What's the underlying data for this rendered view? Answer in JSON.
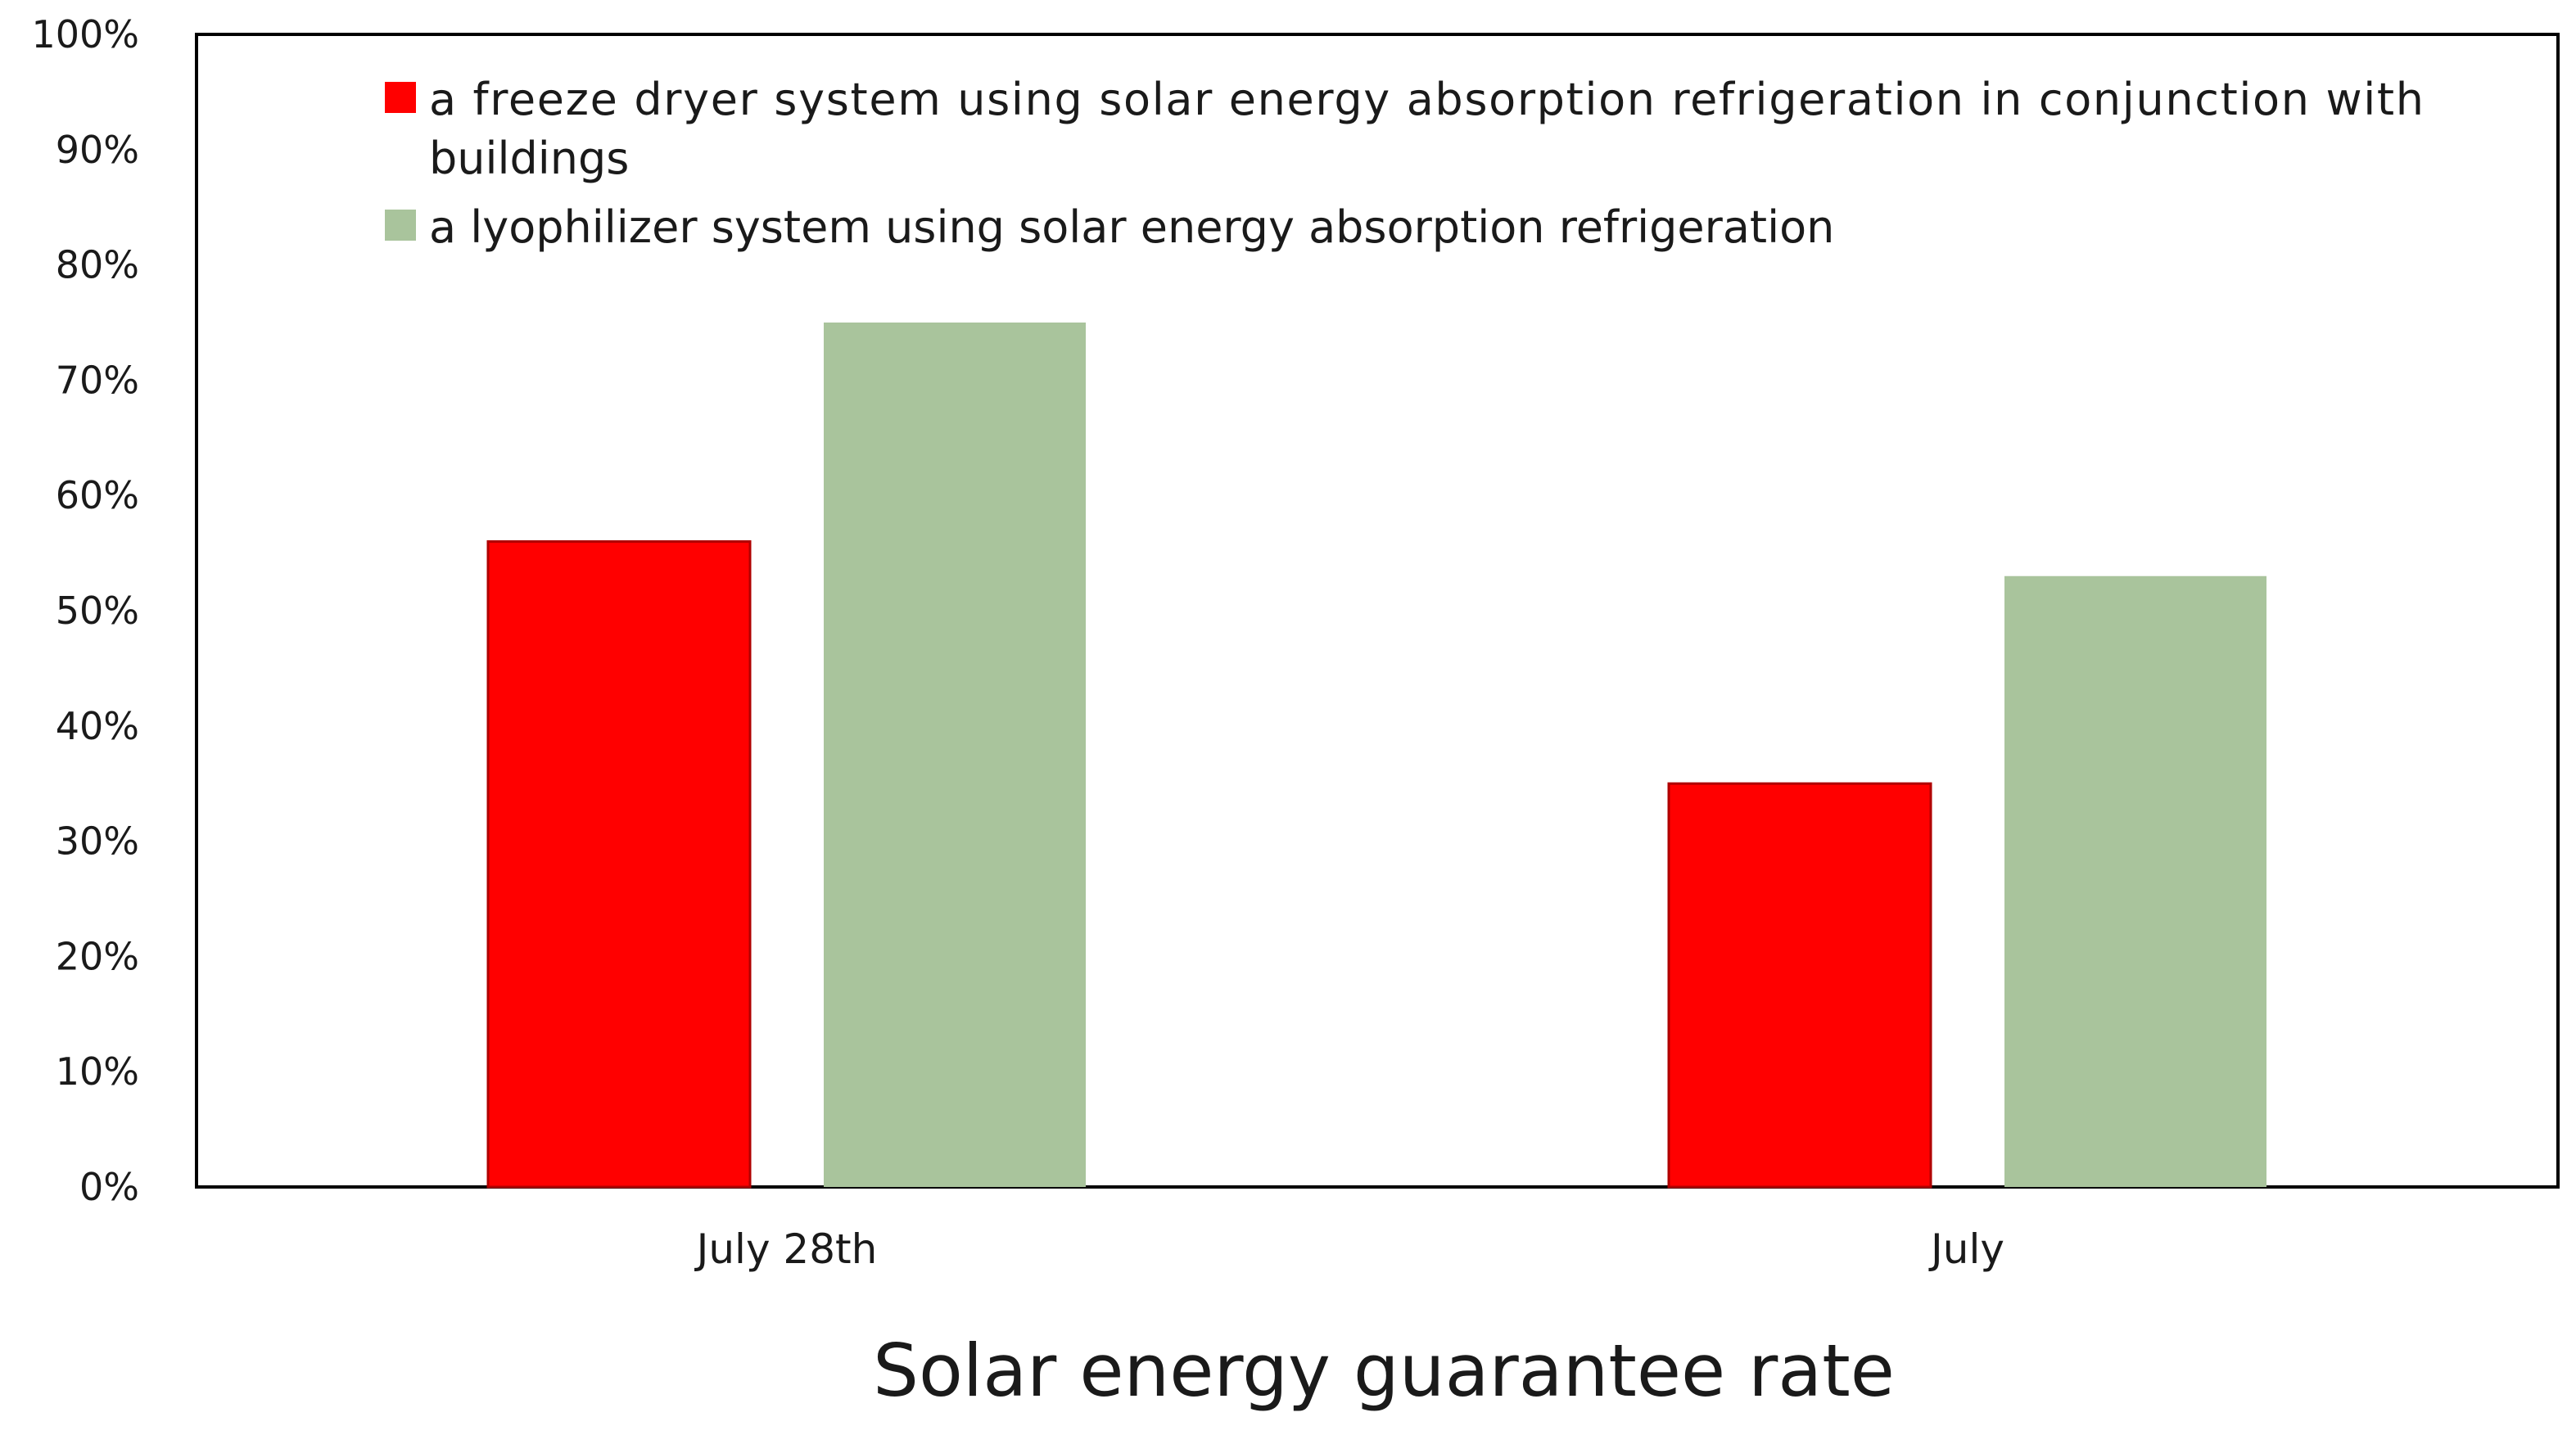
{
  "chart_data": {
    "type": "bar",
    "title": "Solar energy guarantee rate",
    "xlabel": "",
    "ylabel": "",
    "categories": [
      "July 28th",
      "July"
    ],
    "series": [
      {
        "name": "a freeze dryer system using solar energy absorption refrigeration in conjunction with buildings",
        "legend_lines": [
          "a freeze dryer system using solar energy absorption refrigeration in conjunction with",
          "buildings"
        ],
        "color": "#ff0000",
        "values": [
          56,
          35
        ]
      },
      {
        "name": "a lyophilizer system using solar energy absorption refrigeration",
        "legend_lines": [
          "a lyophilizer system using solar energy absorption refrigeration"
        ],
        "color": "#a9c49c",
        "values": [
          75,
          53
        ]
      }
    ],
    "ylim": [
      0,
      100
    ],
    "yticks": [
      "0%",
      "10%",
      "20%",
      "30%",
      "40%",
      "50%",
      "60%",
      "70%",
      "80%",
      "90%",
      "100%"
    ],
    "grid": false,
    "legend_position": "top-left"
  }
}
